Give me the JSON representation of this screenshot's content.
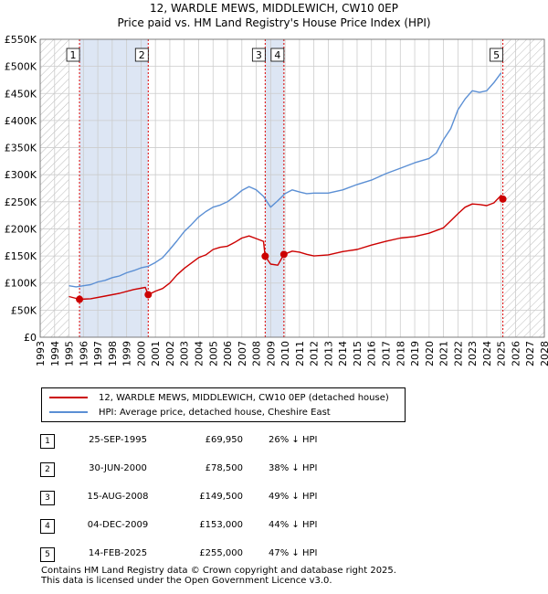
{
  "title_line1": "12, WARDLE MEWS, MIDDLEWICH, CW10 0EP",
  "title_line2": "Price paid vs. HM Land Registry's House Price Index (HPI)",
  "colors": {
    "property": "#cc0000",
    "hpi": "#5b8fd4",
    "shade": "#dde6f4",
    "grid": "#cccccc",
    "marker_line_red": "#dd0000"
  },
  "chart_data": {
    "type": "line",
    "ylabel": "",
    "xlabel": "",
    "xlim": [
      1993,
      2028
    ],
    "ylim": [
      0,
      550000
    ],
    "y_tick_values": [
      0,
      50000,
      100000,
      150000,
      200000,
      250000,
      300000,
      350000,
      400000,
      450000,
      500000,
      550000
    ],
    "y_tick_labels": [
      "£0",
      "£50K",
      "£100K",
      "£150K",
      "£200K",
      "£250K",
      "£300K",
      "£350K",
      "£400K",
      "£450K",
      "£500K",
      "£550K"
    ],
    "x_tick_labels": [
      "1993",
      "1994",
      "1995",
      "1996",
      "1997",
      "1998",
      "1999",
      "2000",
      "2001",
      "2002",
      "2003",
      "2004",
      "2005",
      "2006",
      "2007",
      "2008",
      "2009",
      "2010",
      "2011",
      "2012",
      "2013",
      "2014",
      "2015",
      "2016",
      "2017",
      "2018",
      "2019",
      "2020",
      "2021",
      "2022",
      "2023",
      "2024",
      "2025",
      "2026",
      "2027",
      "2028"
    ],
    "shaded_ranges": [
      [
        1995.73,
        2000.5
      ],
      [
        2008.62,
        2009.92
      ]
    ],
    "hatched_ranges": [
      [
        1993,
        1995
      ],
      [
        2025.12,
        2028
      ]
    ],
    "series": [
      {
        "name": "12, WARDLE MEWS, MIDDLEWICH, CW10 0EP (detached house)",
        "points": [
          [
            1995.0,
            75000
          ],
          [
            1995.73,
            69950
          ],
          [
            1996.5,
            71000
          ],
          [
            1997.5,
            76000
          ],
          [
            1998.5,
            81000
          ],
          [
            1999.5,
            88000
          ],
          [
            2000.3,
            92000
          ],
          [
            2000.5,
            78500
          ],
          [
            2001,
            85000
          ],
          [
            2001.5,
            90000
          ],
          [
            2002,
            100000
          ],
          [
            2002.5,
            115000
          ],
          [
            2003,
            127000
          ],
          [
            2003.5,
            137000
          ],
          [
            2004,
            147000
          ],
          [
            2004.5,
            152000
          ],
          [
            2005,
            162000
          ],
          [
            2005.5,
            166000
          ],
          [
            2006,
            168000
          ],
          [
            2006.5,
            175000
          ],
          [
            2007,
            183000
          ],
          [
            2007.5,
            187000
          ],
          [
            2008,
            182000
          ],
          [
            2008.5,
            177000
          ],
          [
            2008.62,
            149500
          ],
          [
            2009,
            135000
          ],
          [
            2009.5,
            133000
          ],
          [
            2009.92,
            153000
          ],
          [
            2010.5,
            159000
          ],
          [
            2011,
            157000
          ],
          [
            2011.5,
            153000
          ],
          [
            2012,
            150000
          ],
          [
            2013,
            152000
          ],
          [
            2014,
            158000
          ],
          [
            2015,
            162000
          ],
          [
            2016,
            170000
          ],
          [
            2017,
            177000
          ],
          [
            2018,
            183000
          ],
          [
            2019,
            186000
          ],
          [
            2020,
            192000
          ],
          [
            2021,
            202000
          ],
          [
            2021.5,
            215000
          ],
          [
            2022,
            228000
          ],
          [
            2022.5,
            240000
          ],
          [
            2023,
            246000
          ],
          [
            2023.5,
            245000
          ],
          [
            2024,
            243000
          ],
          [
            2024.5,
            248000
          ],
          [
            2025.0,
            262000
          ],
          [
            2025.12,
            255000
          ]
        ]
      },
      {
        "name": "HPI: Average price, detached house, Cheshire East",
        "points": [
          [
            1995.0,
            95000
          ],
          [
            1995.5,
            93000
          ],
          [
            1996,
            95000
          ],
          [
            1996.5,
            97000
          ],
          [
            1997,
            102000
          ],
          [
            1997.5,
            105000
          ],
          [
            1998,
            110000
          ],
          [
            1998.5,
            113000
          ],
          [
            1999,
            119000
          ],
          [
            1999.5,
            123000
          ],
          [
            2000,
            128000
          ],
          [
            2000.5,
            131000
          ],
          [
            2001,
            138000
          ],
          [
            2001.5,
            147000
          ],
          [
            2002,
            162000
          ],
          [
            2002.5,
            178000
          ],
          [
            2003,
            195000
          ],
          [
            2003.5,
            208000
          ],
          [
            2004,
            222000
          ],
          [
            2004.5,
            232000
          ],
          [
            2005,
            240000
          ],
          [
            2005.5,
            244000
          ],
          [
            2006,
            250000
          ],
          [
            2006.5,
            260000
          ],
          [
            2007,
            271000
          ],
          [
            2007.5,
            278000
          ],
          [
            2008,
            272000
          ],
          [
            2008.5,
            260000
          ],
          [
            2009,
            240000
          ],
          [
            2009.5,
            252000
          ],
          [
            2010,
            265000
          ],
          [
            2010.5,
            272000
          ],
          [
            2011,
            268000
          ],
          [
            2011.5,
            265000
          ],
          [
            2012,
            266000
          ],
          [
            2013,
            266000
          ],
          [
            2014,
            272000
          ],
          [
            2015,
            282000
          ],
          [
            2016,
            290000
          ],
          [
            2017,
            302000
          ],
          [
            2018,
            312000
          ],
          [
            2019,
            322000
          ],
          [
            2020,
            330000
          ],
          [
            2020.5,
            340000
          ],
          [
            2021,
            365000
          ],
          [
            2021.5,
            385000
          ],
          [
            2022,
            420000
          ],
          [
            2022.5,
            440000
          ],
          [
            2023,
            455000
          ],
          [
            2023.5,
            452000
          ],
          [
            2024,
            455000
          ],
          [
            2024.5,
            470000
          ],
          [
            2025,
            488000
          ]
        ]
      }
    ],
    "sales": [
      {
        "num": "1",
        "x": 1995.73,
        "price": 69950
      },
      {
        "num": "2",
        "x": 2000.5,
        "price": 78500
      },
      {
        "num": "3",
        "x": 2008.62,
        "price": 149500
      },
      {
        "num": "4",
        "x": 2009.92,
        "price": 153000
      },
      {
        "num": "5",
        "x": 2025.12,
        "price": 255000
      }
    ]
  },
  "legend": {
    "property_label": "12, WARDLE MEWS, MIDDLEWICH, CW10 0EP (detached house)",
    "hpi_label": "HPI: Average price, detached house, Cheshire East"
  },
  "transactions": [
    {
      "num": "1",
      "date": "25-SEP-1995",
      "price": "£69,950",
      "hpi": "26% ↓ HPI"
    },
    {
      "num": "2",
      "date": "30-JUN-2000",
      "price": "£78,500",
      "hpi": "38% ↓ HPI"
    },
    {
      "num": "3",
      "date": "15-AUG-2008",
      "price": "£149,500",
      "hpi": "49% ↓ HPI"
    },
    {
      "num": "4",
      "date": "04-DEC-2009",
      "price": "£153,000",
      "hpi": "44% ↓ HPI"
    },
    {
      "num": "5",
      "date": "14-FEB-2025",
      "price": "£255,000",
      "hpi": "47% ↓ HPI"
    }
  ],
  "footer_line1": "Contains HM Land Registry data © Crown copyright and database right 2025.",
  "footer_line2": "This data is licensed under the Open Government Licence v3.0."
}
